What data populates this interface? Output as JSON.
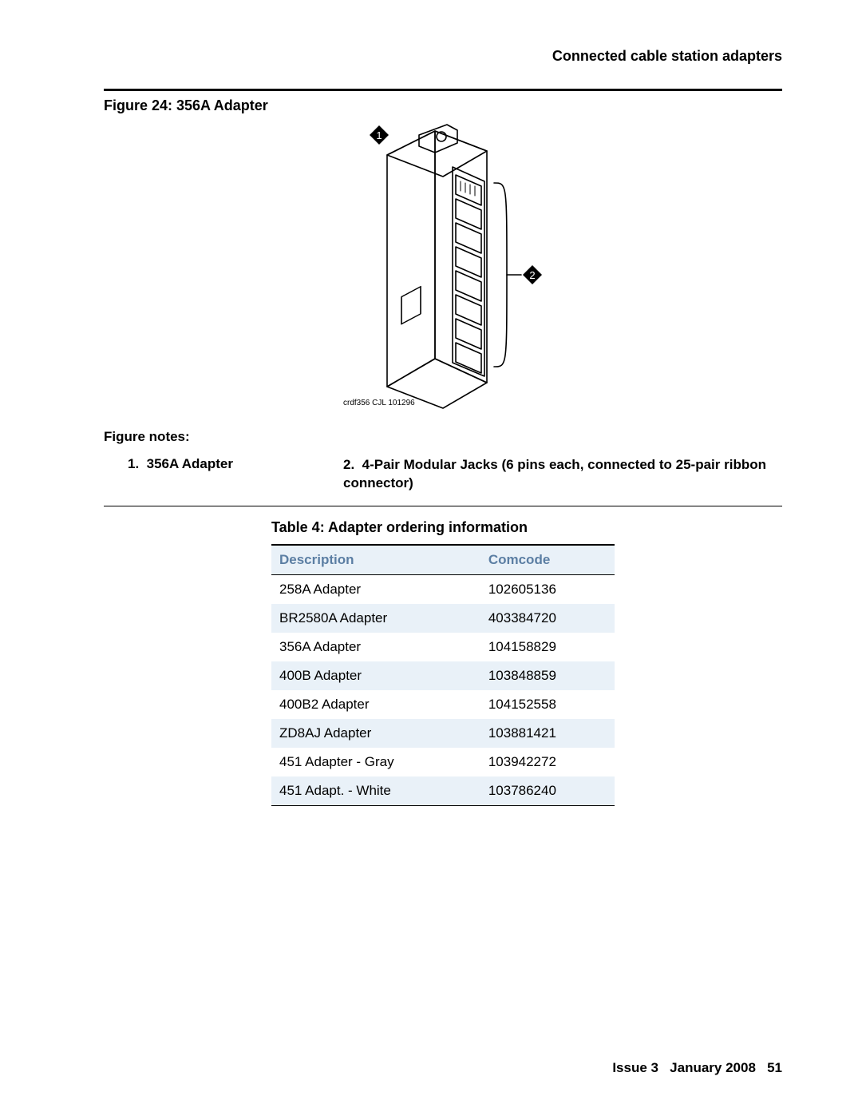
{
  "header": {
    "section_title": "Connected cable station adapters"
  },
  "figure": {
    "title": "Figure 24: 356A Adapter",
    "drawing_ref": "crdf356 CJL 101296",
    "callout1": "1",
    "callout2": "2",
    "notes_label": "Figure notes:",
    "note1_num": "1.",
    "note1_text": "356A Adapter",
    "note2_num": "2.",
    "note2_text": "4-Pair Modular Jacks (6 pins each, connected to 25-pair ribbon connector)"
  },
  "table": {
    "title": "Table 4: Adapter ordering information",
    "header_bg": "#e9f1f8",
    "header_fg": "#5b7ea3",
    "columns": [
      "Description",
      "Comcode"
    ],
    "rows": [
      [
        "258A Adapter",
        "102605136"
      ],
      [
        "BR2580A Adapter",
        "403384720"
      ],
      [
        "356A Adapter",
        "104158829"
      ],
      [
        "400B Adapter",
        "103848859"
      ],
      [
        "400B2 Adapter",
        "104152558"
      ],
      [
        "ZD8AJ Adapter",
        "103881421"
      ],
      [
        "451 Adapter - Gray",
        "103942272"
      ],
      [
        "451 Adapt. - White",
        "103786240"
      ]
    ]
  },
  "footer": {
    "issue": "Issue 3",
    "date": "January 2008",
    "page": "51"
  }
}
